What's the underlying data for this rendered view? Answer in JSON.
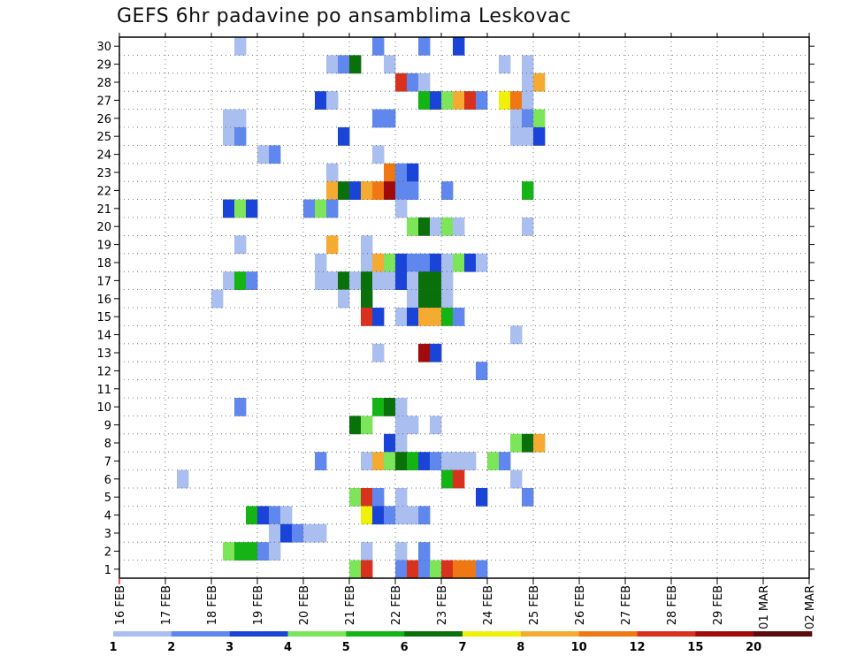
{
  "chart_data": {
    "type": "heatmap",
    "title": "GEFS 6hr padavine po ansamblima Leskovac",
    "xlabel": "",
    "ylabel": "",
    "x_ticks": [
      "16 FEB",
      "17 FEB",
      "18 FEB",
      "19 FEB",
      "20 FEB",
      "21 FEB",
      "22 FEB",
      "23 FEB",
      "24 FEB",
      "25 FEB",
      "26 FEB",
      "27 FEB",
      "28 FEB",
      "29 FEB",
      "01 MAR",
      "02 MAR"
    ],
    "y_ticks": [
      1,
      2,
      3,
      4,
      5,
      6,
      7,
      8,
      9,
      10,
      11,
      12,
      13,
      14,
      15,
      16,
      17,
      18,
      19,
      20,
      21,
      22,
      23,
      24,
      25,
      26,
      27,
      28,
      29,
      30
    ],
    "x_range_days": [
      0,
      15
    ],
    "time_step_hours": 6,
    "grid": true,
    "legend": {
      "placement": "bottom",
      "thresholds": [
        "1",
        "2",
        "3",
        "4",
        "5",
        "6",
        "7",
        "8",
        "10",
        "12",
        "15",
        "20"
      ],
      "colors": [
        "#aabef0",
        "#5f87ee",
        "#1a44d8",
        "#7ce55a",
        "#14b414",
        "#0a700a",
        "#f0f00a",
        "#f5aa32",
        "#f07814",
        "#d8321e",
        "#a00a0a",
        "#5a0a0a"
      ]
    },
    "cells": [
      {
        "m": 30,
        "s": [
          [
            10,
            1
          ],
          [
            22,
            2
          ],
          [
            26,
            2
          ],
          [
            29,
            3
          ]
        ]
      },
      {
        "m": 29,
        "s": [
          [
            18,
            1
          ],
          [
            19,
            2
          ],
          [
            20,
            6
          ],
          [
            23,
            1
          ],
          [
            33,
            1
          ],
          [
            35,
            1
          ]
        ]
      },
      {
        "m": 28,
        "s": [
          [
            24,
            10
          ],
          [
            25,
            2
          ],
          [
            26,
            1
          ],
          [
            35,
            1
          ],
          [
            36,
            8
          ]
        ]
      },
      {
        "m": 27,
        "s": [
          [
            17,
            3
          ],
          [
            18,
            1
          ],
          [
            26,
            5
          ],
          [
            27,
            3
          ],
          [
            28,
            4
          ],
          [
            29,
            8
          ],
          [
            30,
            10
          ],
          [
            31,
            2
          ],
          [
            33,
            7
          ],
          [
            34,
            9
          ],
          [
            35,
            1
          ]
        ]
      },
      {
        "m": 26,
        "s": [
          [
            9,
            1
          ],
          [
            10,
            1
          ],
          [
            22,
            2
          ],
          [
            23,
            2
          ],
          [
            34,
            1
          ],
          [
            35,
            2
          ],
          [
            36,
            4
          ]
        ]
      },
      {
        "m": 25,
        "s": [
          [
            9,
            1
          ],
          [
            10,
            2
          ],
          [
            19,
            3
          ],
          [
            34,
            1
          ],
          [
            35,
            1
          ],
          [
            36,
            3
          ]
        ]
      },
      {
        "m": 24,
        "s": [
          [
            12,
            1
          ],
          [
            13,
            2
          ],
          [
            22,
            1
          ]
        ]
      },
      {
        "m": 23,
        "s": [
          [
            18,
            1
          ],
          [
            23,
            9
          ],
          [
            24,
            2
          ],
          [
            25,
            3
          ]
        ]
      },
      {
        "m": 22,
        "s": [
          [
            18,
            8
          ],
          [
            19,
            6
          ],
          [
            20,
            3
          ],
          [
            21,
            8
          ],
          [
            22,
            9
          ],
          [
            23,
            11
          ],
          [
            24,
            2
          ],
          [
            25,
            2
          ],
          [
            28,
            2
          ],
          [
            35,
            5
          ]
        ]
      },
      {
        "m": 21,
        "s": [
          [
            9,
            3
          ],
          [
            10,
            4
          ],
          [
            11,
            3
          ],
          [
            16,
            2
          ],
          [
            17,
            4
          ],
          [
            18,
            2
          ],
          [
            24,
            1
          ]
        ]
      },
      {
        "m": 20,
        "s": [
          [
            25,
            4
          ],
          [
            26,
            6
          ],
          [
            27,
            1
          ],
          [
            28,
            4
          ],
          [
            29,
            1
          ],
          [
            35,
            1
          ]
        ]
      },
      {
        "m": 19,
        "s": [
          [
            10,
            1
          ],
          [
            18,
            8
          ],
          [
            21,
            1
          ]
        ]
      },
      {
        "m": 18,
        "s": [
          [
            17,
            1
          ],
          [
            21,
            1
          ],
          [
            22,
            8
          ],
          [
            23,
            4
          ],
          [
            24,
            3
          ],
          [
            25,
            2
          ],
          [
            26,
            2
          ],
          [
            27,
            3
          ],
          [
            28,
            1
          ],
          [
            29,
            4
          ],
          [
            30,
            3
          ],
          [
            31,
            1
          ]
        ]
      },
      {
        "m": 17,
        "s": [
          [
            9,
            1
          ],
          [
            10,
            5
          ],
          [
            11,
            2
          ],
          [
            17,
            1
          ],
          [
            18,
            1
          ],
          [
            19,
            6
          ],
          [
            20,
            1
          ],
          [
            21,
            6
          ],
          [
            22,
            1
          ],
          [
            23,
            1
          ],
          [
            24,
            3
          ],
          [
            25,
            1
          ],
          [
            26,
            6
          ],
          [
            27,
            6
          ],
          [
            28,
            1
          ]
        ]
      },
      {
        "m": 16,
        "s": [
          [
            8,
            1
          ],
          [
            19,
            1
          ],
          [
            21,
            6
          ],
          [
            25,
            1
          ],
          [
            26,
            6
          ],
          [
            27,
            6
          ],
          [
            28,
            1
          ]
        ]
      },
      {
        "m": 15,
        "s": [
          [
            21,
            10
          ],
          [
            22,
            3
          ],
          [
            24,
            1
          ],
          [
            25,
            3
          ],
          [
            26,
            8
          ],
          [
            27,
            8
          ],
          [
            28,
            5
          ],
          [
            29,
            2
          ]
        ]
      },
      {
        "m": 14,
        "s": [
          [
            34,
            1
          ]
        ]
      },
      {
        "m": 13,
        "s": [
          [
            22,
            1
          ],
          [
            26,
            11
          ],
          [
            27,
            3
          ]
        ]
      },
      {
        "m": 12,
        "s": [
          [
            31,
            2
          ]
        ]
      },
      {
        "m": 10,
        "s": [
          [
            10,
            2
          ],
          [
            22,
            5
          ],
          [
            23,
            6
          ],
          [
            24,
            1
          ]
        ]
      },
      {
        "m": 9,
        "s": [
          [
            20,
            6
          ],
          [
            21,
            4
          ],
          [
            24,
            1
          ],
          [
            25,
            1
          ],
          [
            27,
            1
          ]
        ]
      },
      {
        "m": 8,
        "s": [
          [
            23,
            3
          ],
          [
            24,
            1
          ],
          [
            34,
            4
          ],
          [
            35,
            6
          ],
          [
            36,
            8
          ]
        ]
      },
      {
        "m": 7,
        "s": [
          [
            17,
            2
          ],
          [
            21,
            1
          ],
          [
            22,
            8
          ],
          [
            23,
            4
          ],
          [
            24,
            6
          ],
          [
            25,
            5
          ],
          [
            26,
            3
          ],
          [
            27,
            2
          ],
          [
            28,
            1
          ],
          [
            29,
            1
          ],
          [
            30,
            1
          ],
          [
            32,
            4
          ],
          [
            33,
            2
          ]
        ]
      },
      {
        "m": 6,
        "s": [
          [
            5,
            1
          ],
          [
            28,
            5
          ],
          [
            29,
            10
          ],
          [
            34,
            1
          ]
        ]
      },
      {
        "m": 5,
        "s": [
          [
            20,
            4
          ],
          [
            21,
            10
          ],
          [
            22,
            2
          ],
          [
            24,
            1
          ],
          [
            31,
            3
          ],
          [
            35,
            2
          ]
        ]
      },
      {
        "m": 4,
        "s": [
          [
            11,
            5
          ],
          [
            12,
            3
          ],
          [
            13,
            2
          ],
          [
            14,
            1
          ],
          [
            21,
            7
          ],
          [
            22,
            3
          ],
          [
            23,
            2
          ],
          [
            24,
            1
          ],
          [
            25,
            1
          ],
          [
            26,
            2
          ]
        ]
      },
      {
        "m": 3,
        "s": [
          [
            13,
            1
          ],
          [
            14,
            3
          ],
          [
            15,
            2
          ],
          [
            16,
            1
          ],
          [
            17,
            1
          ]
        ]
      },
      {
        "m": 2,
        "s": [
          [
            9,
            4
          ],
          [
            10,
            5
          ],
          [
            11,
            5
          ],
          [
            12,
            2
          ],
          [
            13,
            1
          ],
          [
            21,
            1
          ],
          [
            24,
            1
          ],
          [
            26,
            2
          ]
        ]
      },
      {
        "m": 1,
        "s": [
          [
            20,
            4
          ],
          [
            21,
            10
          ],
          [
            24,
            2
          ],
          [
            25,
            10
          ],
          [
            26,
            2
          ],
          [
            27,
            4
          ],
          [
            28,
            10
          ],
          [
            29,
            9
          ],
          [
            30,
            9
          ],
          [
            31,
            2
          ]
        ]
      }
    ]
  }
}
